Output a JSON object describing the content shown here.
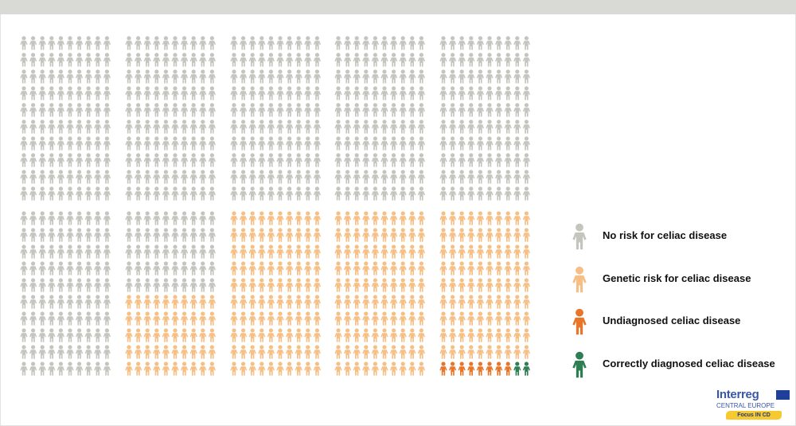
{
  "chart_data": {
    "type": "pictograph",
    "total": 1000,
    "blocks": 10,
    "per_block": 100,
    "block_columns": 10,
    "categories": [
      "No risk for celiac disease",
      "Genetic risk for celiac disease",
      "Undiagnosed celiac disease",
      "Correctly diagnosed celiac disease"
    ],
    "values": [
      650,
      340,
      8,
      2
    ],
    "colors": [
      "#c5c5bf",
      "#f6bf85",
      "#e8762a",
      "#2e7d53"
    ],
    "legend_position": "right"
  },
  "legend": {
    "items": [
      {
        "label": "No risk for celiac disease",
        "color": "#c5c5bf"
      },
      {
        "label": "Genetic risk for celiac disease",
        "color": "#f6bf85"
      },
      {
        "label": "Undiagnosed celiac disease",
        "color": "#e8762a"
      },
      {
        "label": "Correctly diagnosed celiac disease",
        "color": "#2e7d53"
      }
    ]
  },
  "logo": {
    "title": "Interreg",
    "subtitle": "CENTRAL EUROPE",
    "badge": "Focus IN CD"
  }
}
